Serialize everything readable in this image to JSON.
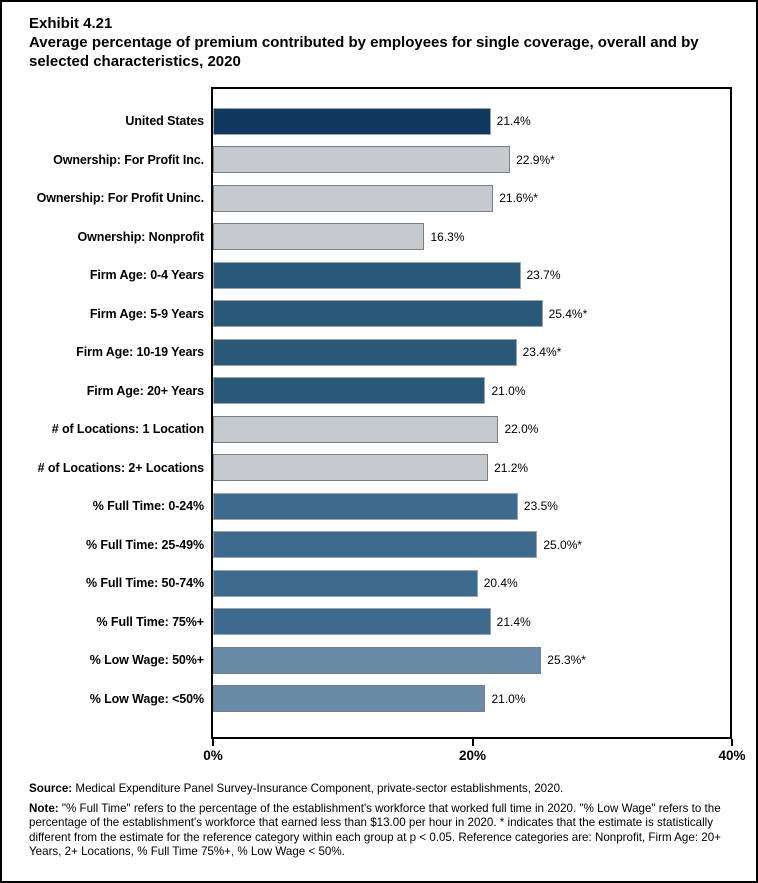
{
  "title": {
    "exhibit": "Exhibit 4.21",
    "text": "Average percentage of premium contributed by employees for single coverage, overall and by selected characteristics, 2020"
  },
  "chart_data": {
    "type": "bar",
    "orientation": "horizontal",
    "title": "Average percentage of premium contributed by employees for single coverage, overall and by selected characteristics, 2020",
    "xlabel": "",
    "ylabel": "",
    "xlim": [
      0,
      40
    ],
    "grid": false,
    "legend": false,
    "x_ticks": [
      {
        "label": "0%",
        "value": 0
      },
      {
        "label": "20%",
        "value": 20
      },
      {
        "label": "40%",
        "value": 40
      }
    ],
    "rows": [
      {
        "label": "United States",
        "value": 21.4,
        "display": "21.4%",
        "group": "united-states"
      },
      {
        "label": "Ownership: For Profit Inc.",
        "value": 22.9,
        "display": "22.9%*",
        "group": "gray"
      },
      {
        "label": "Ownership: For Profit Uninc.",
        "value": 21.6,
        "display": "21.6%*",
        "group": "gray"
      },
      {
        "label": "Ownership: Nonprofit",
        "value": 16.3,
        "display": "16.3%",
        "group": "gray"
      },
      {
        "label": "Firm Age: 0-4 Years",
        "value": 23.7,
        "display": "23.7%",
        "group": "firm-age"
      },
      {
        "label": "Firm Age: 5-9 Years",
        "value": 25.4,
        "display": "25.4%*",
        "group": "firm-age"
      },
      {
        "label": "Firm Age: 10-19 Years",
        "value": 23.4,
        "display": "23.4%*",
        "group": "firm-age"
      },
      {
        "label": "Firm Age: 20+ Years",
        "value": 21.0,
        "display": "21.0%",
        "group": "firm-age"
      },
      {
        "label": "# of Locations: 1 Location",
        "value": 22.0,
        "display": "22.0%",
        "group": "gray"
      },
      {
        "label": "# of Locations: 2+ Locations",
        "value": 21.2,
        "display": "21.2%",
        "group": "gray"
      },
      {
        "label": "% Full Time: 0-24%",
        "value": 23.5,
        "display": "23.5%",
        "group": "full-time"
      },
      {
        "label": "% Full Time: 25-49%",
        "value": 25.0,
        "display": "25.0%*",
        "group": "full-time"
      },
      {
        "label": "% Full Time: 50-74%",
        "value": 20.4,
        "display": "20.4%",
        "group": "full-time"
      },
      {
        "label": "% Full Time: 75%+",
        "value": 21.4,
        "display": "21.4%",
        "group": "full-time"
      },
      {
        "label": "% Low Wage: 50%+",
        "value": 25.3,
        "display": "25.3%*",
        "group": "low-wage"
      },
      {
        "label": "% Low Wage: <50%",
        "value": 21.0,
        "display": "21.0%",
        "group": "low-wage"
      }
    ],
    "colors": {
      "united-states": "#11395F",
      "gray": "#C5CACE",
      "firm-age": "#2A5878",
      "full-time": "#3E6A8D",
      "low-wage": "#6A8BA8"
    },
    "border_colors": {
      "united-states": "#9CA3A9",
      "gray": "#75808A",
      "firm-age": "#9CA3A9",
      "full-time": "#9CA3A9",
      "low-wage": "#75808A"
    }
  },
  "footnotes": {
    "source_label": "Source:",
    "source_text": "Medical Expenditure Panel Survey-Insurance Component, private-sector establishments, 2020.",
    "note_label": "Note:",
    "note_text": "\"% Full Time\" refers to the percentage of the establishment's workforce that worked full time in 2020. \"% Low Wage\" refers to the percentage of the establishment's workforce that earned less than $13.00 per hour in 2020. * indicates that the estimate is statistically different from the estimate for the reference category within each group at p < 0.05.  Reference categories are: Nonprofit, Firm Age: 20+ Years, 2+ Locations, % Full Time 75%+, % Low Wage < 50%."
  }
}
